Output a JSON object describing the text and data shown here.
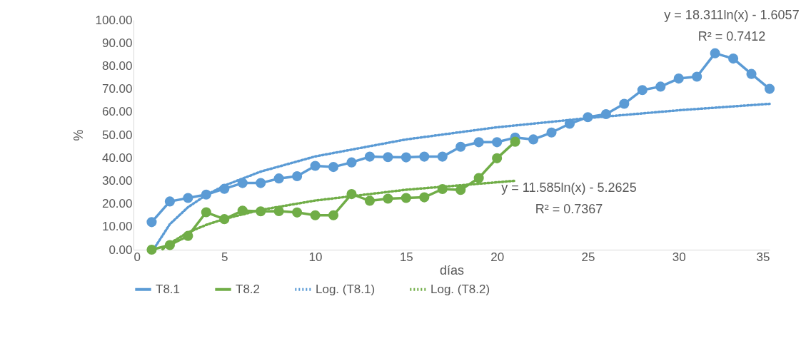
{
  "chart_data": {
    "type": "line",
    "xlabel": "días",
    "ylabel": "%",
    "marker": "circle",
    "legend": "bottom",
    "grid": false,
    "xlim": [
      0,
      35
    ],
    "xticks": [
      0,
      5,
      10,
      15,
      20,
      25,
      30,
      35
    ],
    "ylim": [
      0,
      100
    ],
    "yticks": [
      {
        "value": 0,
        "label": "0.00"
      },
      {
        "value": 10,
        "label": "10.00"
      },
      {
        "value": 20,
        "label": "20.00"
      },
      {
        "value": 30,
        "label": "30.00"
      },
      {
        "value": 40,
        "label": "40.00"
      },
      {
        "value": 50,
        "label": "50.00"
      },
      {
        "value": 60,
        "label": "60.00"
      },
      {
        "value": 70,
        "label": "70.00"
      },
      {
        "value": 80,
        "label": "80.00"
      },
      {
        "value": 90,
        "label": "90.00"
      },
      {
        "value": 100,
        "label": "100.00"
      }
    ],
    "series": [
      {
        "name": "T8.1",
        "color": "#5b9bd5",
        "x": [
          1,
          2,
          3,
          4,
          5,
          6,
          7,
          8,
          9,
          10,
          11,
          12,
          13,
          14,
          15,
          16,
          17,
          18,
          19,
          20,
          21,
          22,
          23,
          24,
          25,
          26,
          27,
          28,
          29,
          30,
          31,
          32,
          33,
          34,
          35
        ],
        "values": [
          12,
          21,
          22.5,
          24,
          26.5,
          29,
          29,
          31,
          32,
          36.5,
          36,
          38,
          40.5,
          40.3,
          40.2,
          40.5,
          40.5,
          44.8,
          46.8,
          46.8,
          48.8,
          48,
          51,
          54.8,
          57.7,
          59,
          63.5,
          69.5,
          71,
          74.5,
          75.3,
          85.5,
          83.2,
          76.5,
          70
        ]
      },
      {
        "name": "T8.2",
        "color": "#70ad47",
        "x": [
          1,
          2,
          3,
          4,
          5,
          6,
          7,
          8,
          9,
          10,
          11,
          12,
          13,
          14,
          15,
          16,
          17,
          18,
          19,
          20,
          21
        ],
        "values": [
          0,
          2,
          6,
          16.3,
          13.3,
          17,
          16.7,
          16.8,
          16.2,
          15,
          15,
          24.2,
          21.3,
          22.2,
          22.5,
          22.8,
          26.4,
          26,
          31.2,
          39.8,
          47
        ]
      },
      {
        "name": "Log. (T8.1)",
        "color": "#5b9bd5",
        "line_style": "dotted",
        "marker": "none",
        "x": [
          1.1,
          2,
          3,
          4,
          5,
          7,
          10,
          15,
          20,
          25,
          30,
          35
        ],
        "values": [
          0.1,
          11.1,
          18.5,
          23.8,
          27.9,
          34,
          40.6,
          48,
          53.3,
          57.3,
          60.7,
          63.5
        ]
      },
      {
        "name": "Log. (T8.2)",
        "color": "#70ad47",
        "line_style": "dotted",
        "marker": "none",
        "x": [
          1.6,
          2,
          3,
          4,
          5,
          7,
          10,
          15,
          21
        ],
        "values": [
          0.2,
          2.8,
          7.5,
          10.8,
          13.4,
          17.3,
          21.4,
          26.1,
          30
        ]
      }
    ],
    "annotations": [
      "y = 18.311ln(x) - 1.6057",
      "R² = 0.7412",
      "y = 11.585ln(x) - 5.2625",
      "R² = 0.7367"
    ]
  }
}
